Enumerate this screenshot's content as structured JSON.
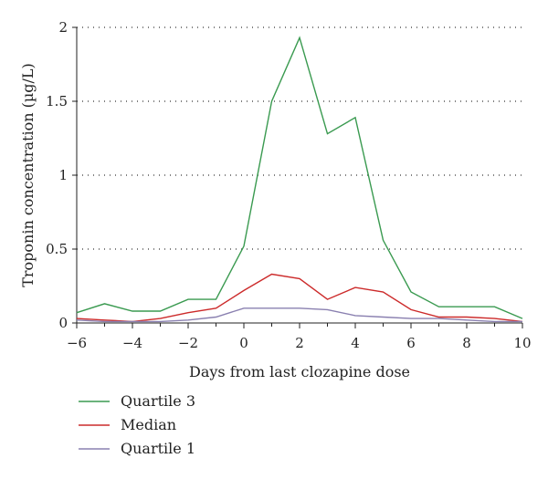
{
  "chart_data": {
    "type": "line",
    "title": "",
    "xlabel": "Days from last clozapine dose",
    "ylabel": "Troponin concentration (µg/L)",
    "xlim": [
      -6,
      10
    ],
    "ylim": [
      0,
      2
    ],
    "xticks": [
      "−6",
      "−4",
      "−2",
      "0",
      "2",
      "4",
      "6",
      "8",
      "10"
    ],
    "yticks": [
      "0",
      "0.5",
      "1",
      "1.5",
      "2"
    ],
    "grid": "horizontal dotted",
    "legend_position": "bottom-left",
    "x": [
      -6,
      -5,
      -4,
      -3,
      -2,
      -1,
      0,
      1,
      2,
      3,
      4,
      5,
      6,
      7,
      8,
      9,
      10
    ],
    "series": [
      {
        "name": "Quartile 3",
        "color": "#3a9a50",
        "values": [
          0.07,
          0.13,
          0.08,
          0.08,
          0.16,
          0.16,
          0.52,
          1.5,
          1.93,
          1.28,
          1.39,
          0.56,
          0.21,
          0.11,
          0.11,
          0.11,
          0.03
        ]
      },
      {
        "name": "Median",
        "color": "#cc2a2a",
        "values": [
          0.03,
          0.02,
          0.01,
          0.03,
          0.07,
          0.1,
          0.22,
          0.33,
          0.3,
          0.16,
          0.24,
          0.21,
          0.09,
          0.04,
          0.04,
          0.03,
          0.01
        ]
      },
      {
        "name": "Quartile 1",
        "color": "#8a80b0",
        "values": [
          0.02,
          0.01,
          0.01,
          0.01,
          0.02,
          0.04,
          0.1,
          0.1,
          0.1,
          0.09,
          0.05,
          0.04,
          0.03,
          0.03,
          0.02,
          0.01,
          0.01
        ]
      }
    ]
  }
}
